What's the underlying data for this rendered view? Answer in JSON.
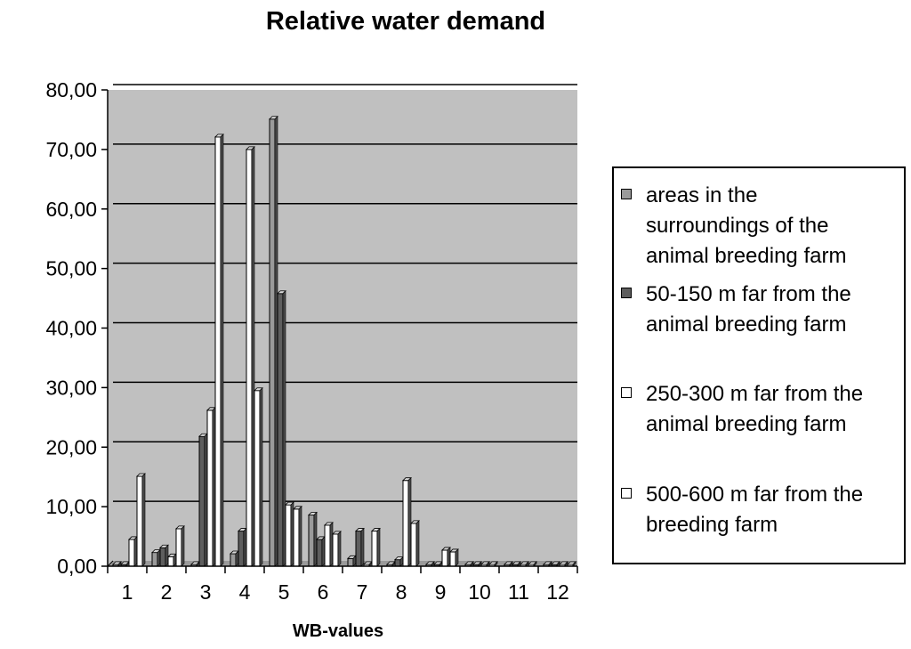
{
  "colors": {
    "plot_background": "#c0c0c0",
    "gridline": "#000000",
    "series": [
      "#9a9a9a",
      "#5e5e5e",
      "#ffffff",
      "#ffffff"
    ]
  },
  "chart_data": {
    "type": "bar",
    "title": "Relative water demand",
    "xlabel": "WB-values",
    "ylabel": "",
    "ylim": [
      0,
      80
    ],
    "ytick_step": 10,
    "ytick_labels": [
      "0,00",
      "10,00",
      "20,00",
      "30,00",
      "40,00",
      "50,00",
      "60,00",
      "70,00",
      "80,00"
    ],
    "categories": [
      "1",
      "2",
      "3",
      "4",
      "5",
      "6",
      "7",
      "8",
      "9",
      "10",
      "11",
      "12"
    ],
    "grid": true,
    "legend_position": "right",
    "series": [
      {
        "name": "areas in the surroundings of the animal breeding farm",
        "values": [
          0.0,
          2.0,
          0.0,
          1.8,
          74.8,
          8.3,
          1.0,
          0.0,
          0.0,
          0.0,
          0.0,
          0.0
        ]
      },
      {
        "name": "50-150 m far from the animal breeding farm",
        "values": [
          0.0,
          2.8,
          21.5,
          5.6,
          45.5,
          4.2,
          5.6,
          0.8,
          0.0,
          0.0,
          0.0,
          0.0
        ]
      },
      {
        "name": "250-300 m far from the animal breeding farm",
        "values": [
          4.2,
          1.3,
          25.9,
          69.7,
          10.0,
          6.6,
          0.0,
          14.1,
          2.4,
          0.0,
          0.0,
          0.0
        ]
      },
      {
        "name": "500-600 m far from the breeding farm",
        "values": [
          14.8,
          6.0,
          71.8,
          29.2,
          9.3,
          5.1,
          5.6,
          6.9,
          2.1,
          0.0,
          0.0,
          0.0
        ]
      }
    ]
  },
  "legend": {
    "items": [
      {
        "lines": [
          "areas in the",
          "surroundings of the",
          "animal breeding farm"
        ]
      },
      {
        "lines": [
          "50-150 m far from the",
          "animal breeding farm"
        ]
      },
      {
        "lines": [
          "250-300 m far from the",
          "animal breeding farm"
        ]
      },
      {
        "lines": [
          "500-600 m far from the",
          "breeding farm"
        ]
      }
    ]
  }
}
